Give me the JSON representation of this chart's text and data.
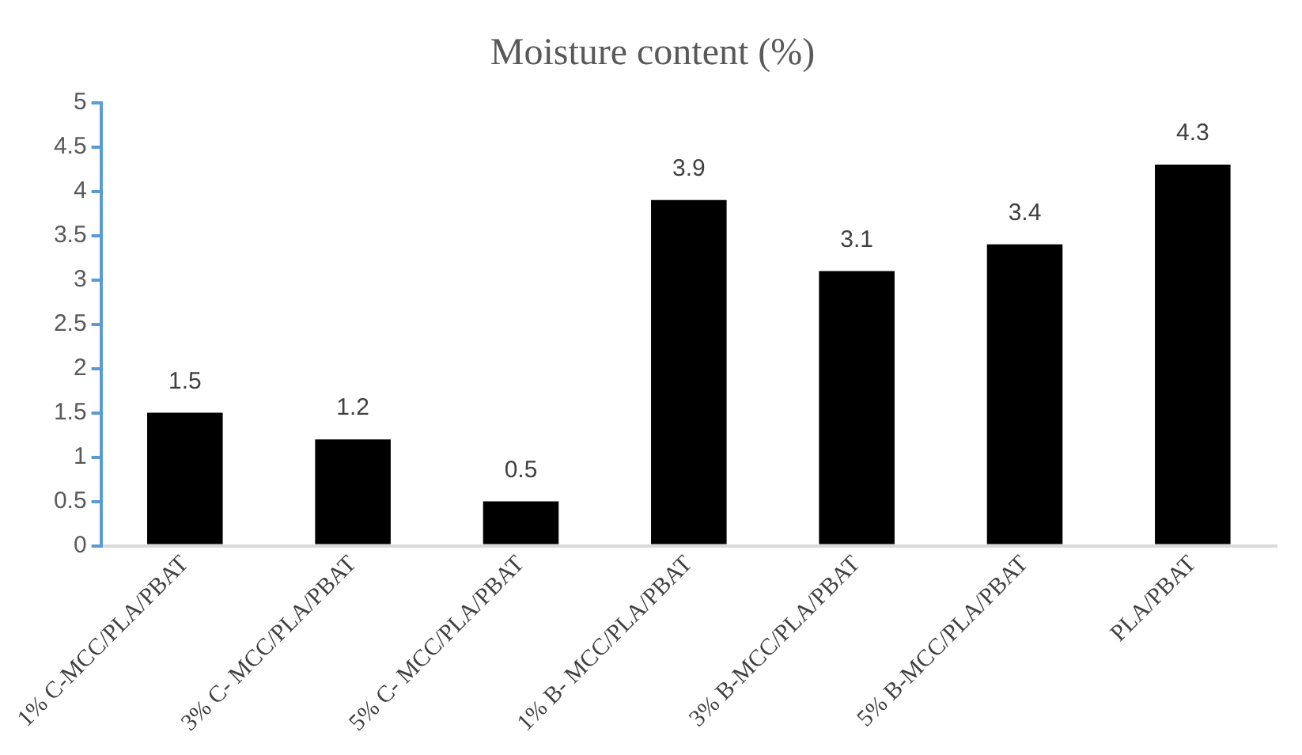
{
  "chart_data": {
    "type": "bar",
    "title": "Moisture content (%)",
    "categories": [
      "1% C-MCC/PLA/PBAT",
      "3% C- MCC/PLA/PBAT",
      "5% C- MCC/PLA/PBAT",
      "1% B- MCC/PLA/PBAT",
      "3% B-MCC/PLA/PBAT",
      "5% B-MCC/PLA/PBAT",
      "PLA/PBAT"
    ],
    "values": [
      1.5,
      1.2,
      0.5,
      3.9,
      3.1,
      3.4,
      4.3
    ],
    "color": "#000000",
    "ylim": [
      0,
      5
    ],
    "yticks": [
      0,
      0.5,
      1,
      1.5,
      2,
      2.5,
      3,
      3.5,
      4,
      4.5,
      5
    ],
    "grid": false,
    "legend": false,
    "data_labels": true
  }
}
